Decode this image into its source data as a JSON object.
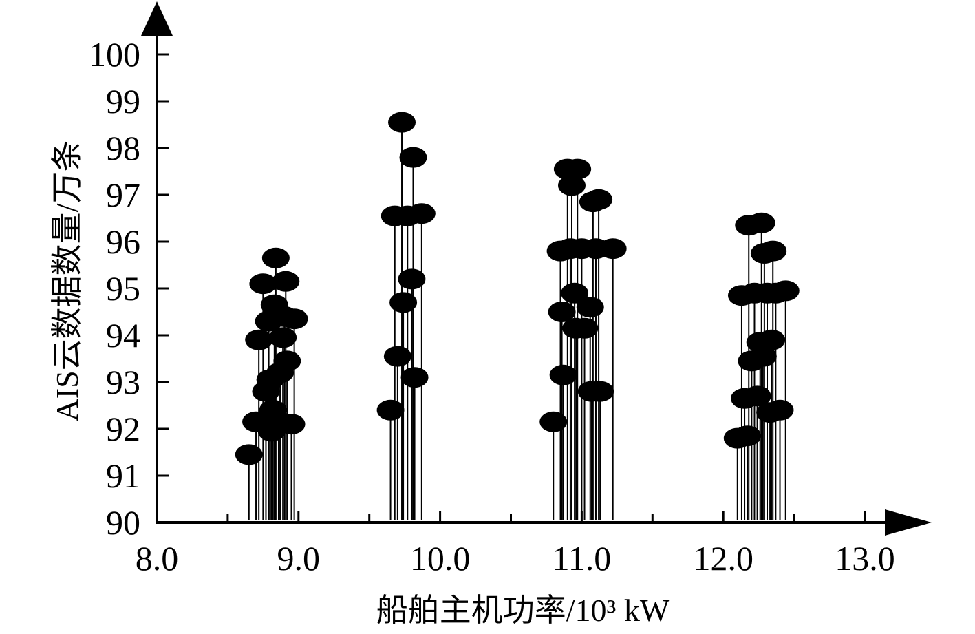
{
  "chart_data": {
    "type": "scatter",
    "style": "stem",
    "xlabel": "船舶主机功率/10³ kW",
    "ylabel": "AIS云数据数量/万条",
    "xlim": [
      8.0,
      13.0
    ],
    "ylim": [
      90,
      100
    ],
    "x_ticks": [
      "8.0",
      "9.0",
      "10.0",
      "11.0",
      "12.0",
      "13.0"
    ],
    "y_ticks": [
      "90",
      "91",
      "92",
      "93",
      "94",
      "95",
      "96",
      "97",
      "98",
      "99",
      "100"
    ],
    "grid": false,
    "legend": "none",
    "marker_color": "#000000",
    "points": [
      {
        "x": 8.65,
        "y": 91.45
      },
      {
        "x": 8.7,
        "y": 92.15
      },
      {
        "x": 8.72,
        "y": 93.9
      },
      {
        "x": 8.75,
        "y": 95.1
      },
      {
        "x": 8.77,
        "y": 92.8
      },
      {
        "x": 8.79,
        "y": 94.3
      },
      {
        "x": 8.8,
        "y": 93.05
      },
      {
        "x": 8.81,
        "y": 91.95
      },
      {
        "x": 8.82,
        "y": 92.4
      },
      {
        "x": 8.83,
        "y": 94.65
      },
      {
        "x": 8.84,
        "y": 95.65
      },
      {
        "x": 8.86,
        "y": 92.15
      },
      {
        "x": 8.87,
        "y": 93.2
      },
      {
        "x": 8.89,
        "y": 93.95
      },
      {
        "x": 8.9,
        "y": 94.4
      },
      {
        "x": 8.91,
        "y": 95.15
      },
      {
        "x": 8.92,
        "y": 93.45
      },
      {
        "x": 8.95,
        "y": 92.1
      },
      {
        "x": 8.97,
        "y": 94.35
      },
      {
        "x": 9.65,
        "y": 92.4
      },
      {
        "x": 9.68,
        "y": 96.55
      },
      {
        "x": 9.7,
        "y": 93.55
      },
      {
        "x": 9.73,
        "y": 98.55
      },
      {
        "x": 9.74,
        "y": 94.7
      },
      {
        "x": 9.77,
        "y": 96.55
      },
      {
        "x": 9.8,
        "y": 95.2
      },
      {
        "x": 9.81,
        "y": 97.8
      },
      {
        "x": 9.82,
        "y": 93.1
      },
      {
        "x": 9.87,
        "y": 96.6
      },
      {
        "x": 10.8,
        "y": 92.15
      },
      {
        "x": 10.85,
        "y": 95.8
      },
      {
        "x": 10.86,
        "y": 94.5
      },
      {
        "x": 10.87,
        "y": 93.15
      },
      {
        "x": 10.9,
        "y": 97.55
      },
      {
        "x": 10.92,
        "y": 95.85
      },
      {
        "x": 10.93,
        "y": 97.2
      },
      {
        "x": 10.95,
        "y": 94.9
      },
      {
        "x": 10.96,
        "y": 94.15
      },
      {
        "x": 10.97,
        "y": 97.55
      },
      {
        "x": 11.0,
        "y": 95.85
      },
      {
        "x": 11.02,
        "y": 94.15
      },
      {
        "x": 11.06,
        "y": 94.6
      },
      {
        "x": 11.07,
        "y": 92.8
      },
      {
        "x": 11.08,
        "y": 96.85
      },
      {
        "x": 11.1,
        "y": 95.85
      },
      {
        "x": 11.12,
        "y": 96.9
      },
      {
        "x": 11.13,
        "y": 92.8
      },
      {
        "x": 11.22,
        "y": 95.85
      },
      {
        "x": 12.1,
        "y": 91.8
      },
      {
        "x": 12.13,
        "y": 94.85
      },
      {
        "x": 12.15,
        "y": 92.65
      },
      {
        "x": 12.17,
        "y": 91.85
      },
      {
        "x": 12.18,
        "y": 96.35
      },
      {
        "x": 12.2,
        "y": 93.45
      },
      {
        "x": 12.22,
        "y": 94.9
      },
      {
        "x": 12.24,
        "y": 92.7
      },
      {
        "x": 12.26,
        "y": 93.85
      },
      {
        "x": 12.27,
        "y": 96.4
      },
      {
        "x": 12.28,
        "y": 93.55
      },
      {
        "x": 12.29,
        "y": 95.75
      },
      {
        "x": 12.31,
        "y": 94.9
      },
      {
        "x": 12.33,
        "y": 92.35
      },
      {
        "x": 12.34,
        "y": 93.9
      },
      {
        "x": 12.35,
        "y": 95.8
      },
      {
        "x": 12.37,
        "y": 94.9
      },
      {
        "x": 12.4,
        "y": 92.4
      },
      {
        "x": 12.44,
        "y": 94.95
      }
    ]
  }
}
